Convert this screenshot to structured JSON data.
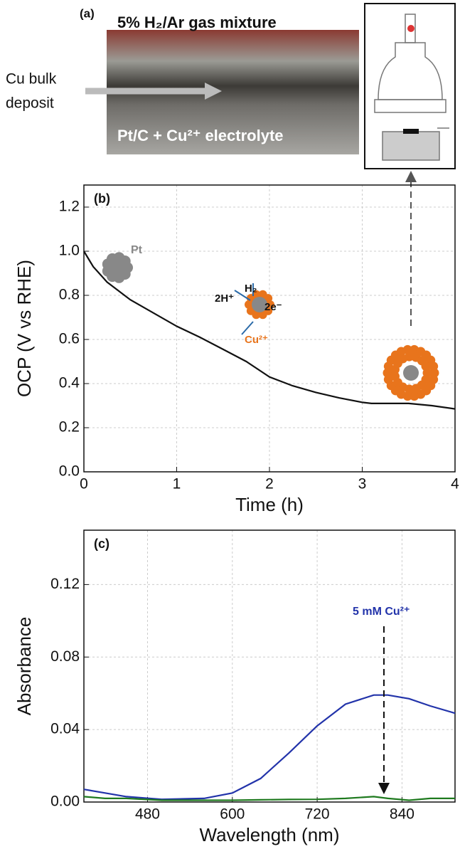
{
  "panel_a": {
    "label": "(a)",
    "title": "5% H₂/Ar gas mixture",
    "caption": "Pt/C + Cu²⁺ electrolyte",
    "arrow_label": [
      "Cu bulk",
      "deposit"
    ]
  },
  "chart_data": [
    {
      "type": "line",
      "panel_label": "(b)",
      "x_label": "Time (h)",
      "y_label": "OCP (V vs RHE)",
      "xlim": [
        0,
        4
      ],
      "xticks": [
        0,
        1,
        2,
        3,
        4
      ],
      "ylim": [
        0,
        1.3
      ],
      "yticks": [
        {
          "value": 0,
          "label": "0.0"
        },
        0.2,
        0.4,
        0.6,
        0.8,
        {
          "value": 1,
          "label": "1.0"
        },
        1.2
      ],
      "grid": true,
      "x": [
        0,
        0.1,
        0.25,
        0.5,
        0.75,
        1,
        1.25,
        1.5,
        1.75,
        2,
        2.25,
        2.5,
        2.75,
        3,
        3.1,
        3.5,
        3.75,
        4
      ],
      "series": [
        {
          "color": "#111111",
          "values": [
            1.0,
            0.93,
            0.86,
            0.78,
            0.72,
            0.66,
            0.61,
            0.555,
            0.5,
            0.43,
            0.39,
            0.36,
            0.335,
            0.315,
            0.31,
            0.31,
            0.3,
            0.285
          ]
        }
      ],
      "annotations": [
        "Pt",
        "2H⁺",
        "H₂",
        "2e⁻",
        "Cu²⁺"
      ]
    },
    {
      "type": "line",
      "panel_label": "(c)",
      "x_label": "Wavelength (nm)",
      "y_label": "Absorbance",
      "xlim": [
        390,
        915
      ],
      "xticks": [
        480,
        600,
        720,
        840
      ],
      "ylim": [
        0,
        0.15
      ],
      "yticks": [
        {
          "value": 0,
          "label": "0.00"
        },
        0.04,
        0.08,
        0.12
      ],
      "grid": true,
      "x": [
        390,
        420,
        450,
        500,
        560,
        600,
        640,
        680,
        720,
        760,
        800,
        820,
        850,
        880,
        915
      ],
      "series": [
        {
          "color": "#2233aa",
          "values": [
            0.007,
            0.005,
            0.003,
            0.0015,
            0.002,
            0.005,
            0.013,
            0.027,
            0.042,
            0.054,
            0.059,
            0.059,
            0.057,
            0.053,
            0.049
          ]
        },
        {
          "color": "#1f7a1f",
          "values": [
            0.003,
            0.002,
            0.002,
            0.001,
            0.001,
            0.001,
            0.0012,
            0.0014,
            0.0015,
            0.002,
            0.003,
            0.002,
            0.001,
            0.002,
            0.002
          ]
        }
      ],
      "annotations": [
        "5 mM Cu²⁺"
      ]
    }
  ]
}
